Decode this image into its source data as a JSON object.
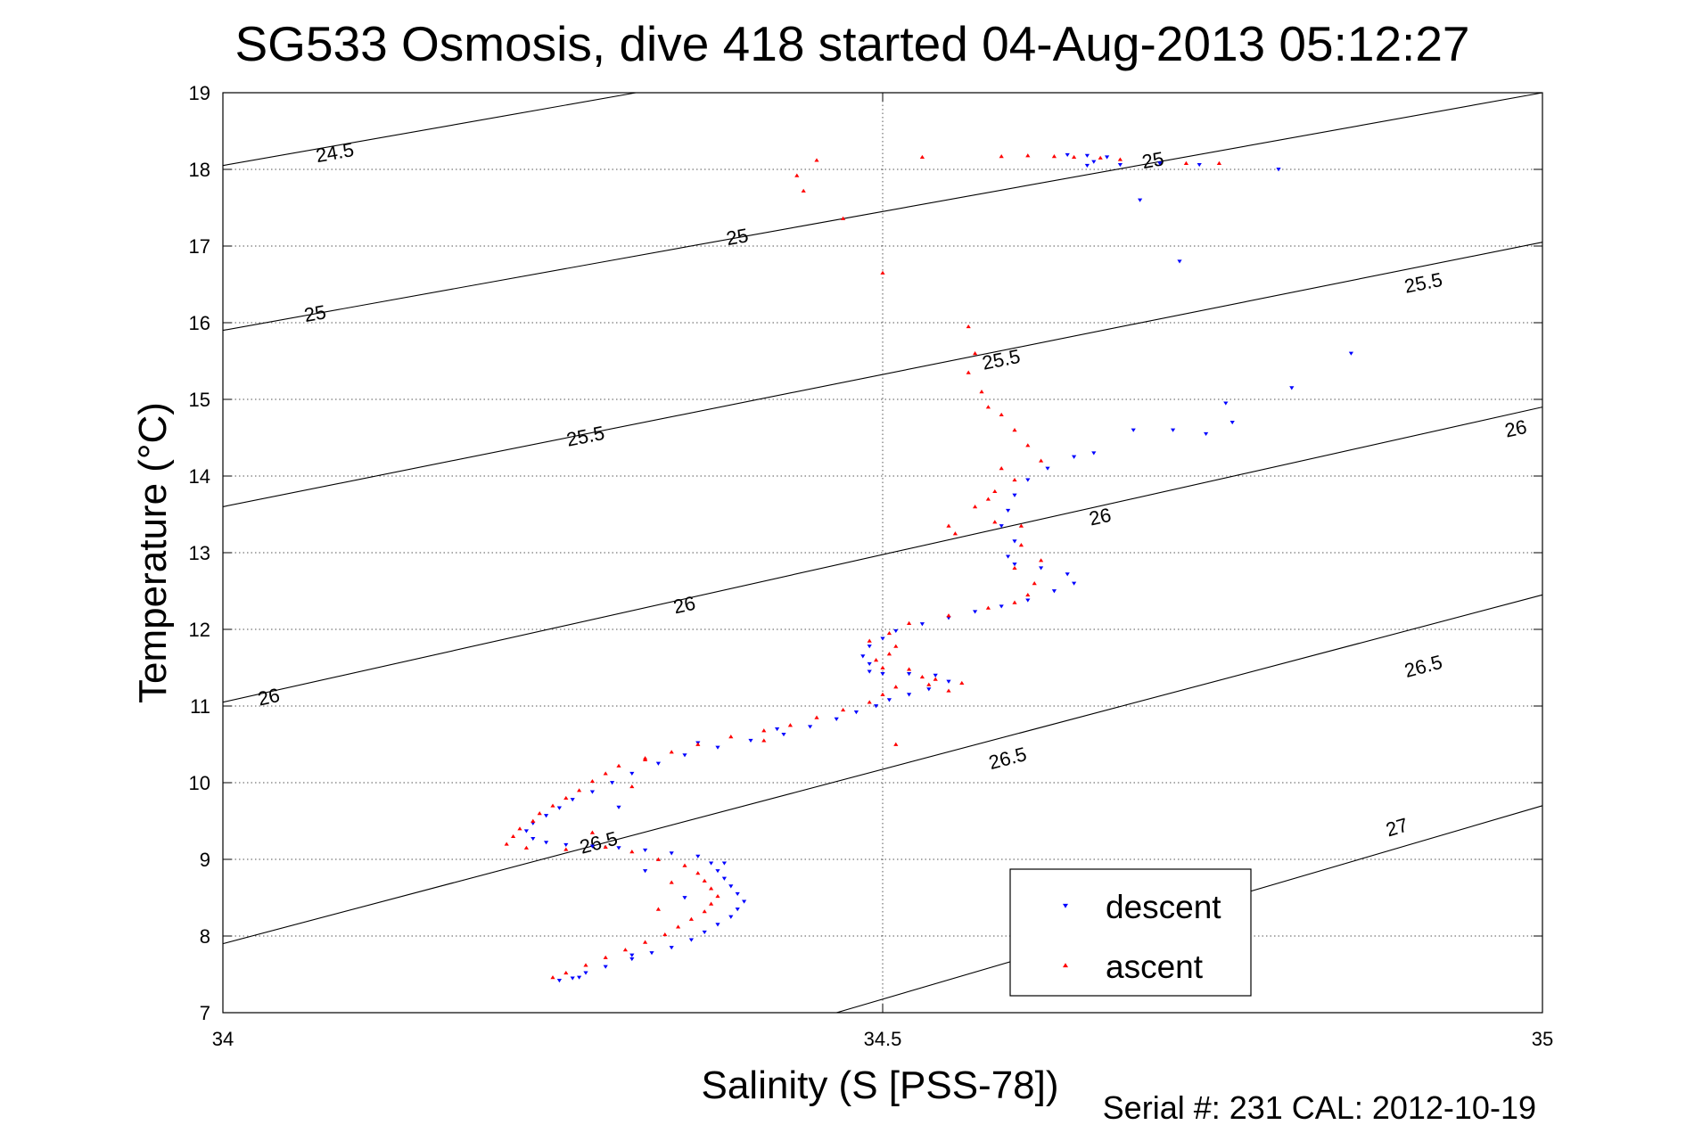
{
  "chart_data": {
    "type": "scatter",
    "title": "SG533 Osmosis, dive 418 started 04-Aug-2013 05:12:27",
    "xlabel": "Salinity (S [PSS-78])",
    "ylabel": "Temperature (°C)",
    "footer": "Serial #: 231  CAL: 2012-10-19",
    "xlim": [
      34,
      35
    ],
    "ylim": [
      7,
      19
    ],
    "x_ticks": [
      "34",
      "34.5",
      "35"
    ],
    "x_tick_values": [
      34,
      34.5,
      35
    ],
    "y_ticks": [
      "7",
      "8",
      "9",
      "10",
      "11",
      "12",
      "13",
      "14",
      "15",
      "16",
      "17",
      "18",
      "19"
    ],
    "y_tick_values": [
      7,
      8,
      9,
      10,
      11,
      12,
      13,
      14,
      15,
      16,
      17,
      18,
      19
    ],
    "grid": true,
    "legend_position": "bottom-right",
    "density_contours": [
      {
        "label": "24.5",
        "points": [
          [
            34,
            18.05
          ],
          [
            34.313,
            19
          ]
        ],
        "label_positions": [
          [
            34.085,
            18.2
          ]
        ]
      },
      {
        "label": "25",
        "points": [
          [
            34,
            15.9
          ],
          [
            35,
            19.0
          ]
        ],
        "label_positions": [
          [
            34.07,
            16.1
          ],
          [
            34.39,
            17.1
          ],
          [
            34.705,
            18.1
          ]
        ]
      },
      {
        "label": "25.5",
        "points": [
          [
            34,
            13.6
          ],
          [
            35,
            17.05
          ]
        ],
        "label_positions": [
          [
            34.275,
            14.5
          ],
          [
            34.59,
            15.5
          ],
          [
            34.91,
            16.5
          ]
        ]
      },
      {
        "label": "26",
        "points": [
          [
            34,
            11.05
          ],
          [
            35,
            14.9
          ]
        ],
        "label_positions": [
          [
            34.035,
            11.1
          ],
          [
            34.35,
            12.3
          ],
          [
            34.665,
            13.45
          ],
          [
            34.98,
            14.6
          ]
        ]
      },
      {
        "label": "26.5",
        "points": [
          [
            34,
            7.9
          ],
          [
            35,
            12.45
          ]
        ],
        "label_positions": [
          [
            34.285,
            9.2
          ],
          [
            34.595,
            10.3
          ],
          [
            34.91,
            11.5
          ]
        ]
      },
      {
        "label": "27",
        "points": [
          [
            34.465,
            7
          ],
          [
            35,
            9.7
          ]
        ],
        "label_positions": [
          [
            34.89,
            9.4
          ]
        ]
      }
    ],
    "series": [
      {
        "name": "descent",
        "color": "#0000ff",
        "marker": "triangle-down",
        "points": [
          [
            34.64,
            18.19
          ],
          [
            34.655,
            18.18
          ],
          [
            34.67,
            18.16
          ],
          [
            34.66,
            18.1
          ],
          [
            34.655,
            18.05
          ],
          [
            34.68,
            18.06
          ],
          [
            34.71,
            18.08
          ],
          [
            34.74,
            18.06
          ],
          [
            34.8,
            18.0
          ],
          [
            34.695,
            17.6
          ],
          [
            34.725,
            16.8
          ],
          [
            34.855,
            15.6
          ],
          [
            34.81,
            15.15
          ],
          [
            34.76,
            14.95
          ],
          [
            34.765,
            14.7
          ],
          [
            34.72,
            14.6
          ],
          [
            34.69,
            14.6
          ],
          [
            34.745,
            14.55
          ],
          [
            34.66,
            14.3
          ],
          [
            34.645,
            14.25
          ],
          [
            34.625,
            14.1
          ],
          [
            34.61,
            13.95
          ],
          [
            34.6,
            13.75
          ],
          [
            34.595,
            13.55
          ],
          [
            34.59,
            13.35
          ],
          [
            34.6,
            13.15
          ],
          [
            34.595,
            12.95
          ],
          [
            34.6,
            12.85
          ],
          [
            34.62,
            12.8
          ],
          [
            34.64,
            12.72
          ],
          [
            34.645,
            12.6
          ],
          [
            34.63,
            12.5
          ],
          [
            34.61,
            12.38
          ],
          [
            34.59,
            12.3
          ],
          [
            34.57,
            12.23
          ],
          [
            34.55,
            12.15
          ],
          [
            34.53,
            12.07
          ],
          [
            34.51,
            11.98
          ],
          [
            34.5,
            11.88
          ],
          [
            34.49,
            11.78
          ],
          [
            34.485,
            11.65
          ],
          [
            34.49,
            11.55
          ],
          [
            34.49,
            11.45
          ],
          [
            34.5,
            11.42
          ],
          [
            34.52,
            11.42
          ],
          [
            34.54,
            11.4
          ],
          [
            34.55,
            11.32
          ],
          [
            34.535,
            11.22
          ],
          [
            34.52,
            11.15
          ],
          [
            34.505,
            11.08
          ],
          [
            34.495,
            11.0
          ],
          [
            34.48,
            10.92
          ],
          [
            34.465,
            10.83
          ],
          [
            34.445,
            10.73
          ],
          [
            34.425,
            10.63
          ],
          [
            34.4,
            10.55
          ],
          [
            34.375,
            10.46
          ],
          [
            34.35,
            10.36
          ],
          [
            34.33,
            10.25
          ],
          [
            34.31,
            10.12
          ],
          [
            34.295,
            10.0
          ],
          [
            34.28,
            9.88
          ],
          [
            34.265,
            9.78
          ],
          [
            34.255,
            9.67
          ],
          [
            34.245,
            9.57
          ],
          [
            34.235,
            9.47
          ],
          [
            34.23,
            9.37
          ],
          [
            34.235,
            9.27
          ],
          [
            34.245,
            9.22
          ],
          [
            34.26,
            9.19
          ],
          [
            34.28,
            9.17
          ],
          [
            34.3,
            9.15
          ],
          [
            34.32,
            9.12
          ],
          [
            34.34,
            9.08
          ],
          [
            34.36,
            9.04
          ],
          [
            34.37,
            8.95
          ],
          [
            34.375,
            8.85
          ],
          [
            34.38,
            8.75
          ],
          [
            34.385,
            8.65
          ],
          [
            34.39,
            8.55
          ],
          [
            34.395,
            8.45
          ],
          [
            34.39,
            8.35
          ],
          [
            34.385,
            8.25
          ],
          [
            34.375,
            8.15
          ],
          [
            34.365,
            8.05
          ],
          [
            34.355,
            7.95
          ],
          [
            34.34,
            7.85
          ],
          [
            34.325,
            7.78
          ],
          [
            34.31,
            7.7
          ],
          [
            34.29,
            7.6
          ],
          [
            34.275,
            7.52
          ],
          [
            34.265,
            7.45
          ],
          [
            34.255,
            7.42
          ],
          [
            34.27,
            7.46
          ],
          [
            34.31,
            7.75
          ],
          [
            34.35,
            8.5
          ],
          [
            34.32,
            8.85
          ],
          [
            34.38,
            8.95
          ],
          [
            34.36,
            10.52
          ],
          [
            34.42,
            10.7
          ],
          [
            34.3,
            9.68
          ]
        ]
      },
      {
        "name": "ascent",
        "color": "#ff0000",
        "marker": "triangle-up",
        "points": [
          [
            34.63,
            18.17
          ],
          [
            34.645,
            18.16
          ],
          [
            34.665,
            18.15
          ],
          [
            34.68,
            18.13
          ],
          [
            34.61,
            18.18
          ],
          [
            34.59,
            18.17
          ],
          [
            34.53,
            18.16
          ],
          [
            34.45,
            18.12
          ],
          [
            34.435,
            17.92
          ],
          [
            34.44,
            17.72
          ],
          [
            34.47,
            17.36
          ],
          [
            34.5,
            16.65
          ],
          [
            34.73,
            18.08
          ],
          [
            34.755,
            18.08
          ],
          [
            34.565,
            15.95
          ],
          [
            34.57,
            15.6
          ],
          [
            34.565,
            15.35
          ],
          [
            34.575,
            15.1
          ],
          [
            34.58,
            14.9
          ],
          [
            34.59,
            14.8
          ],
          [
            34.6,
            14.6
          ],
          [
            34.61,
            14.4
          ],
          [
            34.62,
            14.2
          ],
          [
            34.6,
            13.95
          ],
          [
            34.585,
            13.8
          ],
          [
            34.57,
            13.6
          ],
          [
            34.55,
            13.35
          ],
          [
            34.555,
            13.25
          ],
          [
            34.585,
            13.4
          ],
          [
            34.605,
            13.35
          ],
          [
            34.605,
            13.1
          ],
          [
            34.62,
            12.9
          ],
          [
            34.615,
            12.6
          ],
          [
            34.61,
            12.45
          ],
          [
            34.6,
            12.35
          ],
          [
            34.58,
            12.28
          ],
          [
            34.55,
            12.18
          ],
          [
            34.52,
            12.08
          ],
          [
            34.505,
            11.95
          ],
          [
            34.49,
            11.85
          ],
          [
            34.51,
            11.78
          ],
          [
            34.505,
            11.68
          ],
          [
            34.495,
            11.6
          ],
          [
            34.5,
            11.5
          ],
          [
            34.52,
            11.48
          ],
          [
            34.54,
            11.35
          ],
          [
            34.56,
            11.3
          ],
          [
            34.535,
            11.28
          ],
          [
            34.51,
            11.25
          ],
          [
            34.5,
            11.15
          ],
          [
            34.49,
            11.05
          ],
          [
            34.47,
            10.95
          ],
          [
            34.45,
            10.85
          ],
          [
            34.43,
            10.75
          ],
          [
            34.41,
            10.68
          ],
          [
            34.385,
            10.6
          ],
          [
            34.36,
            10.5
          ],
          [
            34.34,
            10.4
          ],
          [
            34.32,
            10.32
          ],
          [
            34.3,
            10.22
          ],
          [
            34.29,
            10.12
          ],
          [
            34.28,
            10.02
          ],
          [
            34.27,
            9.9
          ],
          [
            34.26,
            9.8
          ],
          [
            34.25,
            9.7
          ],
          [
            34.24,
            9.6
          ],
          [
            34.235,
            9.5
          ],
          [
            34.225,
            9.4
          ],
          [
            34.22,
            9.3
          ],
          [
            34.215,
            9.2
          ],
          [
            34.23,
            9.15
          ],
          [
            34.26,
            9.13
          ],
          [
            34.29,
            9.16
          ],
          [
            34.31,
            9.1
          ],
          [
            34.33,
            9.0
          ],
          [
            34.35,
            8.92
          ],
          [
            34.36,
            8.82
          ],
          [
            34.365,
            8.72
          ],
          [
            34.37,
            8.62
          ],
          [
            34.375,
            8.52
          ],
          [
            34.37,
            8.42
          ],
          [
            34.365,
            8.32
          ],
          [
            34.355,
            8.22
          ],
          [
            34.345,
            8.12
          ],
          [
            34.335,
            8.02
          ],
          [
            34.32,
            7.92
          ],
          [
            34.305,
            7.82
          ],
          [
            34.29,
            7.72
          ],
          [
            34.275,
            7.62
          ],
          [
            34.26,
            7.52
          ],
          [
            34.25,
            7.46
          ],
          [
            34.34,
            8.7
          ],
          [
            34.33,
            8.35
          ],
          [
            34.41,
            10.55
          ],
          [
            34.51,
            10.5
          ],
          [
            34.32,
            10.3
          ],
          [
            34.31,
            9.95
          ],
          [
            34.55,
            11.2
          ],
          [
            34.53,
            11.38
          ],
          [
            34.59,
            14.1
          ],
          [
            34.58,
            13.7
          ],
          [
            34.6,
            12.8
          ],
          [
            34.28,
            9.35
          ]
        ]
      }
    ]
  }
}
